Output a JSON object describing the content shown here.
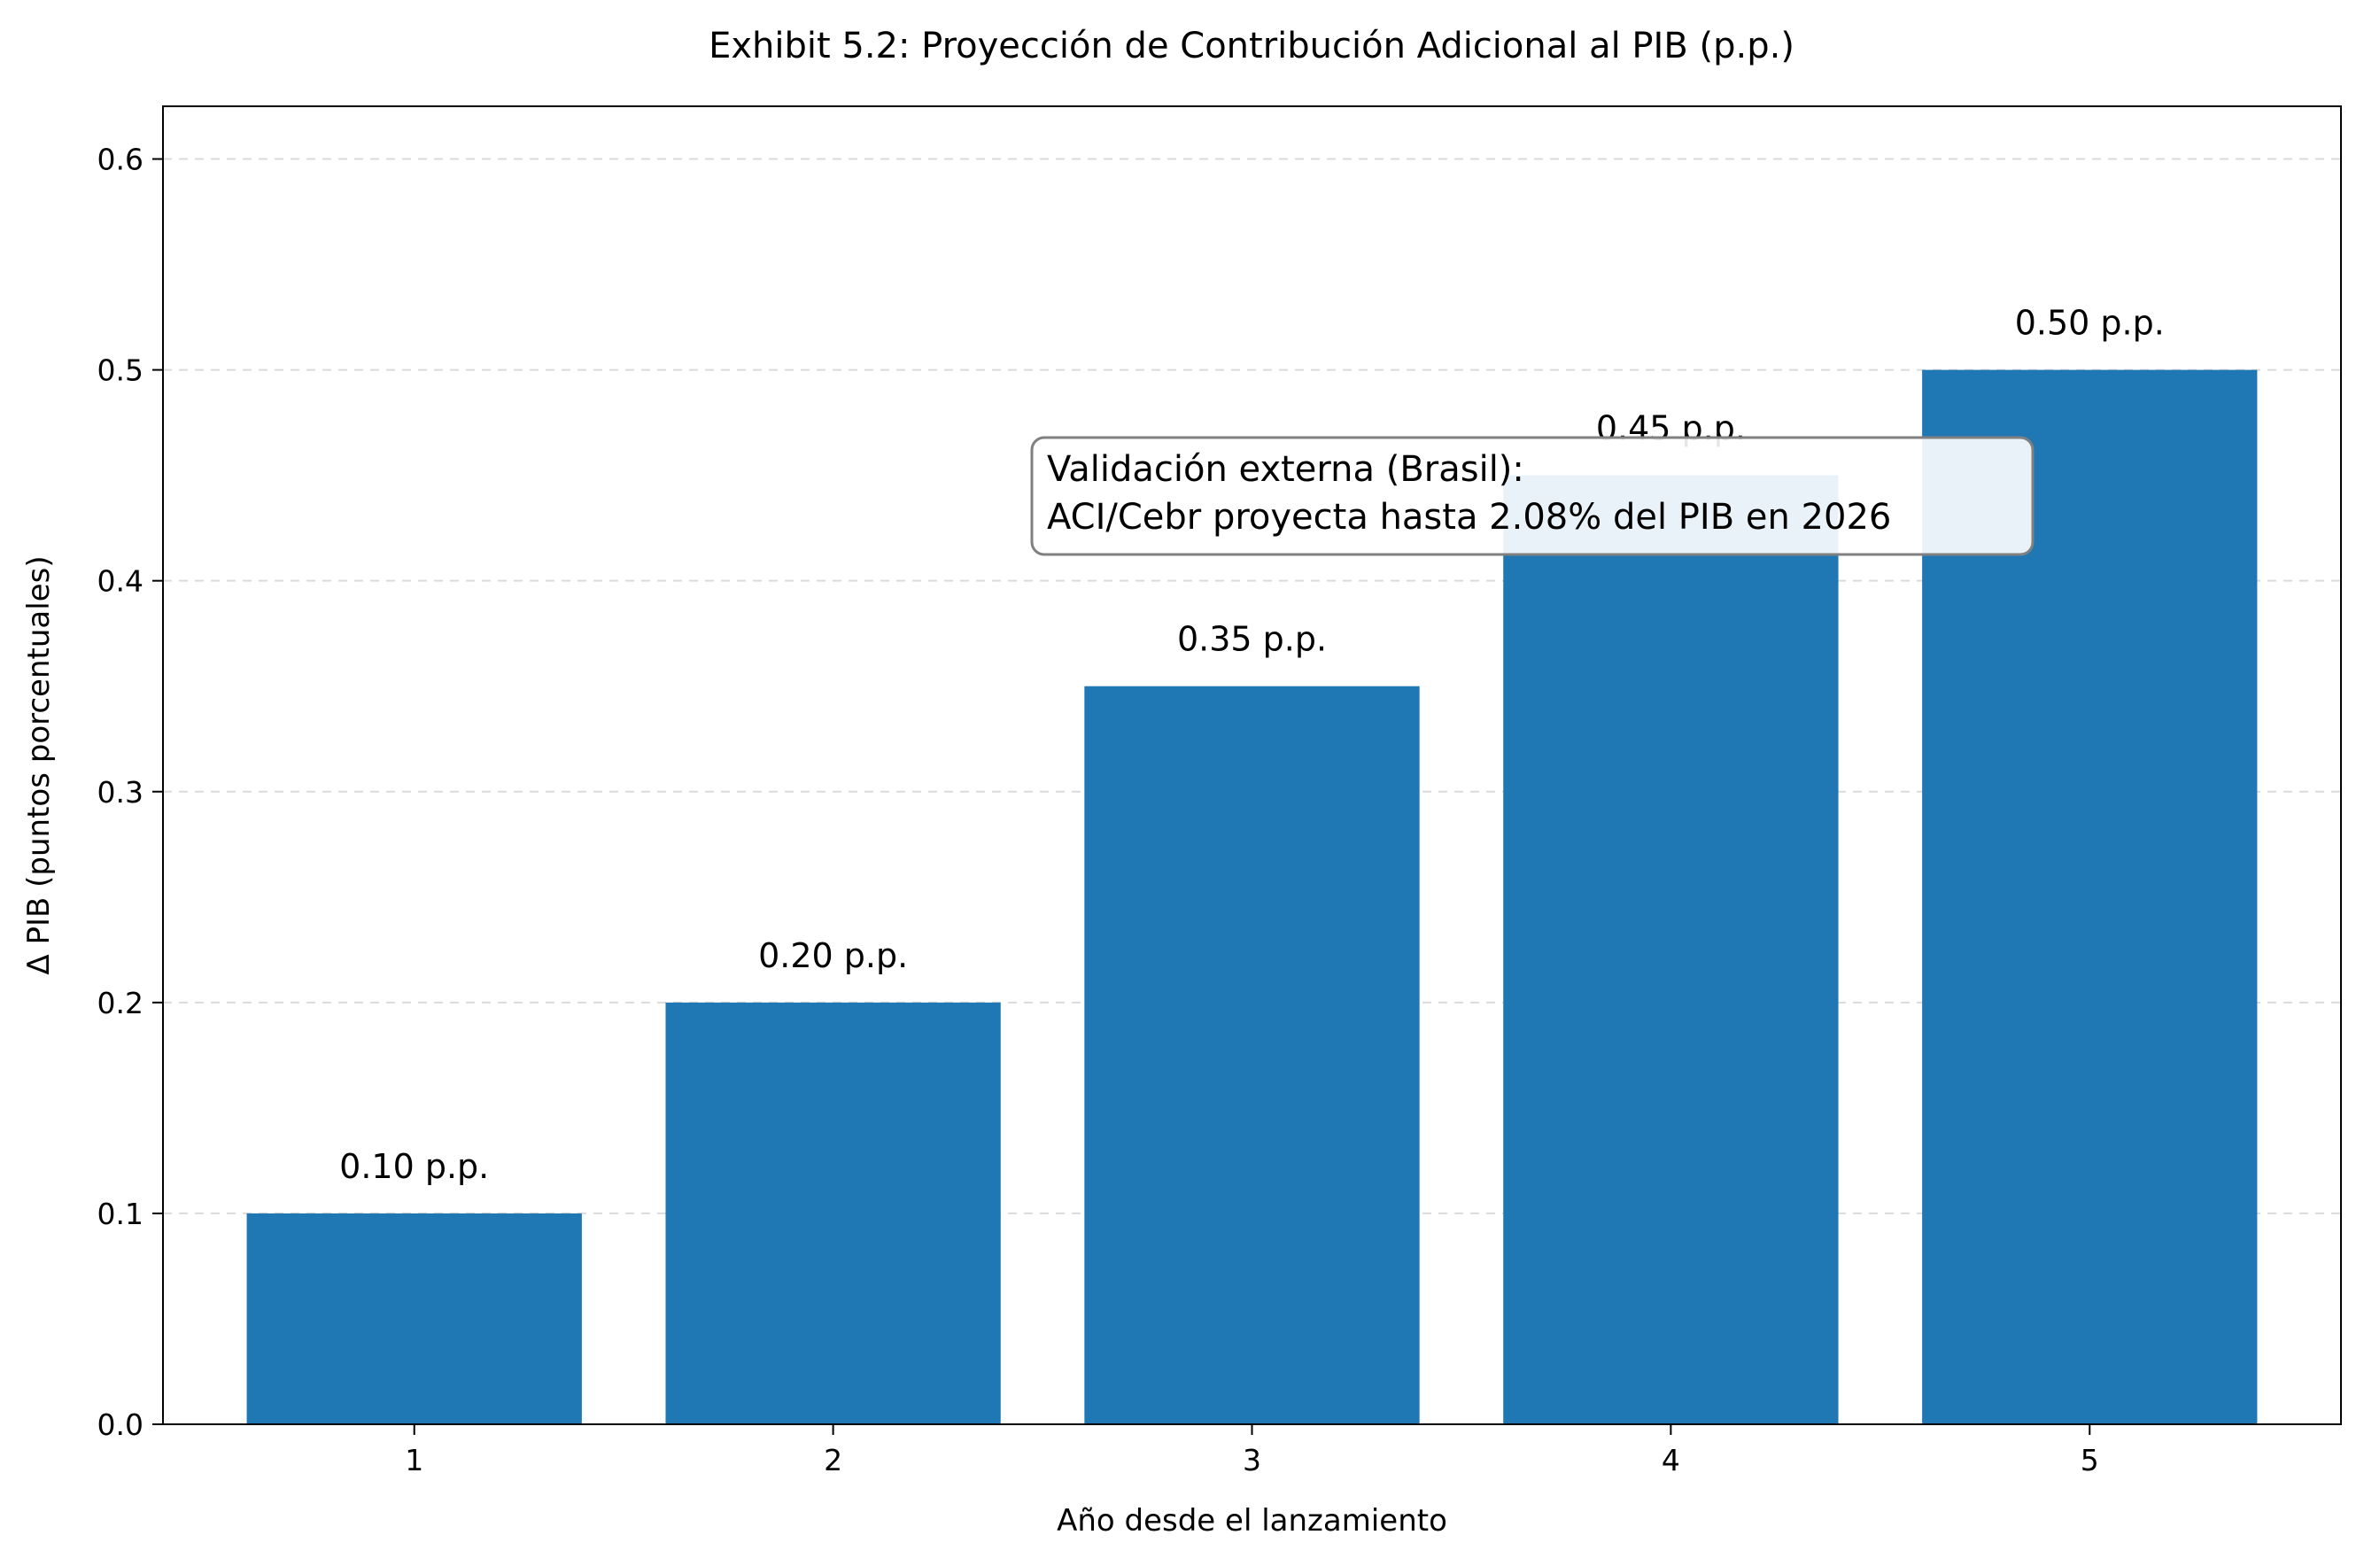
{
  "chart_data": {
    "type": "bar",
    "title": "Exhibit 5.2: Proyección de Contribución Adicional al PIB (p.p.)",
    "xlabel": "Año desde el lanzamiento",
    "ylabel": "Δ PIB (puntos porcentuales)",
    "categories": [
      "1",
      "2",
      "3",
      "4",
      "5"
    ],
    "values": [
      0.1,
      0.2,
      0.35,
      0.45,
      0.5
    ],
    "data_labels": [
      "0.10 p.p.",
      "0.20 p.p.",
      "0.35 p.p.",
      "0.45 p.p.",
      "0.50 p.p."
    ],
    "ylim": [
      0,
      0.625
    ],
    "yticks": [
      0.0,
      0.1,
      0.2,
      0.3,
      0.4,
      0.5,
      0.6
    ],
    "ytick_labels": [
      "0.0",
      "0.1",
      "0.2",
      "0.3",
      "0.4",
      "0.5",
      "0.6"
    ],
    "grid": "horizontal-dashed",
    "bar_color": "#1f77b4",
    "annotation": {
      "line1": "Validación externa (Brasil):",
      "line2": "ACI/Cebr proyecta hasta 2.08% del PIB en 2026"
    }
  }
}
